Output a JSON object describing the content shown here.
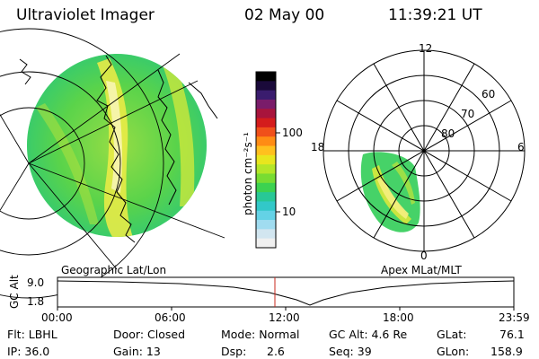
{
  "header": {
    "instrument": "Ultraviolet Imager",
    "date": "02 May 00",
    "time": "11:39:21 UT"
  },
  "colorbar": {
    "label": "photon cm⁻²s⁻¹",
    "ticks": [
      "100",
      "10"
    ],
    "colors": [
      "#000000",
      "#1a0a3a",
      "#3a1c6e",
      "#7a1c6a",
      "#a8143c",
      "#d41c1c",
      "#f0501a",
      "#ff8c14",
      "#ffc01e",
      "#e8e61e",
      "#b4e628",
      "#78dc32",
      "#3cd250",
      "#28c896",
      "#32c8c8",
      "#64d2e6",
      "#a0dcf0",
      "#d2e6f0",
      "#f0f0f0"
    ]
  },
  "left_map": {
    "label": "Geographic Lat/Lon"
  },
  "right_map": {
    "label": "Apex MLat/MLT",
    "mlt_labels": {
      "top": "12",
      "left": "18",
      "right": "6",
      "bottom": "0"
    },
    "lat_labels": [
      "60",
      "70",
      "80"
    ]
  },
  "timeline": {
    "ylabel": "GC Alt",
    "yticks": [
      "9.0",
      "1.8"
    ],
    "xticks": [
      "00:00",
      "06:00",
      "12:00",
      "18:00",
      "23:59"
    ],
    "current_time_marker": "11:39"
  },
  "info": {
    "flt": "Flt: LBHL",
    "ip": "IP: 36.0",
    "door": "Door: Closed",
    "gain": "Gain: 13",
    "mode": "Mode: Normal",
    "dsp_label": "Dsp:",
    "dsp_value": "2.6",
    "gcalt": "GC Alt: 4.6 Re",
    "seq": "Seq: 39",
    "glat_label": "GLat:",
    "glat_value": "76.1",
    "glon_label": "GLon:",
    "glon_value": "158.9"
  }
}
